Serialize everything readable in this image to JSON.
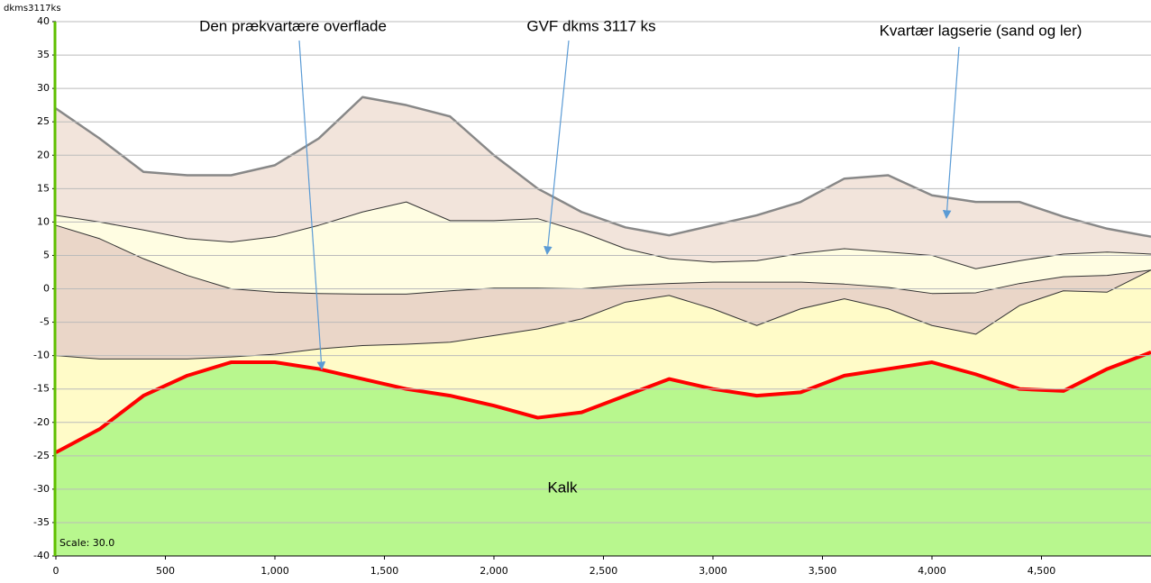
{
  "chart_data": {
    "type": "area",
    "axis_title": "dkms3117ks",
    "scale_label": "Scale: 30.0",
    "annotations": [
      "Den prækvartære overflade",
      "GVF dkms 3117 ks",
      "Kvartær lagserie (sand og ler)",
      "Kalk"
    ],
    "x": [
      0,
      200,
      400,
      600,
      800,
      1000,
      1200,
      1400,
      1600,
      1800,
      2000,
      2200,
      2400,
      2600,
      2800,
      3000,
      3200,
      3400,
      3600,
      3800,
      4000,
      4200,
      4400,
      4600,
      4800,
      5000
    ],
    "series": [
      {
        "color": "#888888",
        "fill": "#f2e4db",
        "values": [
          27,
          22.5,
          17.5,
          17,
          17,
          18.5,
          22.5,
          28.7,
          27.5,
          25.8,
          20,
          15,
          11.5,
          9.2,
          8,
          9.5,
          11,
          13,
          16.5,
          17,
          14,
          13,
          13,
          10.8,
          9,
          7.8
        ]
      },
      {
        "color": "#333333",
        "fill": "#fffde2",
        "values": [
          11,
          10,
          8.8,
          7.5,
          7,
          7.8,
          9.5,
          11.5,
          13,
          10.2,
          10.2,
          10.5,
          8.5,
          6,
          4.5,
          4,
          4.2,
          5.3,
          6,
          5.5,
          5,
          3,
          4.2,
          5.2,
          5.5,
          5.2
        ]
      },
      {
        "color": "#333333",
        "fill": "#ead6c8",
        "values": [
          9.5,
          7.5,
          4.5,
          2,
          0,
          -0.5,
          -0.7,
          -0.8,
          -0.8,
          -0.3,
          0.1,
          0.1,
          0,
          0.5,
          0.8,
          1,
          1,
          1,
          0.7,
          0.2,
          -0.7,
          -0.6,
          0.8,
          1.8,
          2,
          2.8
        ]
      },
      {
        "color": "#333333",
        "fill": "#fffbc8",
        "values": [
          -10,
          -10.5,
          -10.5,
          -10.5,
          -10.2,
          -9.8,
          -9,
          -8.5,
          -8.3,
          -8,
          -7,
          -6,
          -4.5,
          -2,
          -1,
          -3,
          -5.5,
          -3,
          -1.5,
          -3,
          -5.5,
          -6.8,
          -2.5,
          -0.3,
          -0.5,
          2.8
        ]
      },
      {
        "color": "#ff0000",
        "fill": "#b8f78e",
        "values": [
          -24.5,
          -21,
          -16,
          -13,
          -11,
          -11,
          -12,
          -13.5,
          -15,
          -16,
          -17.5,
          -19.3,
          -18.5,
          -16,
          -13.5,
          -15,
          -16,
          -15.5,
          -13,
          -12,
          -11,
          -12.8,
          -15,
          -15.3,
          -12,
          -9.5
        ]
      }
    ],
    "xlim": [
      0,
      5000
    ],
    "ylim": [
      -40,
      40
    ],
    "xticks": [
      0,
      500,
      {
        "value": 1000,
        "label": "1,000"
      },
      {
        "value": 1500,
        "label": "1,500"
      },
      {
        "value": 2000,
        "label": "2,000"
      },
      {
        "value": 2500,
        "label": "2,500"
      },
      {
        "value": 3000,
        "label": "3,000"
      },
      {
        "value": 3500,
        "label": "3,500"
      },
      {
        "value": 4000,
        "label": "4,000"
      },
      {
        "value": 4500,
        "label": "4,500"
      }
    ],
    "yticks": [
      -40,
      -35,
      -30,
      -25,
      -20,
      -15,
      -10,
      -5,
      0,
      5,
      10,
      15,
      20,
      25,
      30,
      35,
      40
    ],
    "grid": true
  }
}
